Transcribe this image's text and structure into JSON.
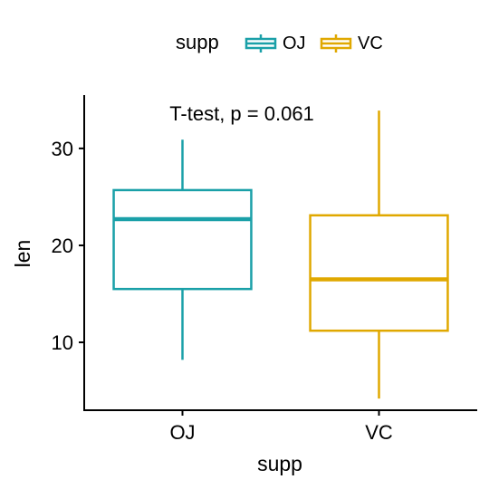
{
  "chart_data": {
    "type": "boxplot",
    "title": "",
    "xlabel": "supp",
    "ylabel": "len",
    "categories": [
      "OJ",
      "VC"
    ],
    "ylim": [
      3.0,
      35.5
    ],
    "yticks": [
      10,
      20,
      30
    ],
    "grid": false,
    "legend": {
      "title": "supp",
      "placement": "top",
      "items": [
        "OJ",
        "VC"
      ]
    },
    "annotation": "T-test, p = 0.061",
    "series": [
      {
        "category": "OJ",
        "color": "#1aa0a8",
        "whisker_low": 8.2,
        "q1": 15.5,
        "median": 22.7,
        "q3": 25.7,
        "whisker_high": 30.9
      },
      {
        "category": "VC",
        "color": "#e0a800",
        "whisker_low": 4.2,
        "q1": 11.2,
        "median": 16.5,
        "q3": 23.1,
        "whisker_high": 33.9
      }
    ]
  }
}
